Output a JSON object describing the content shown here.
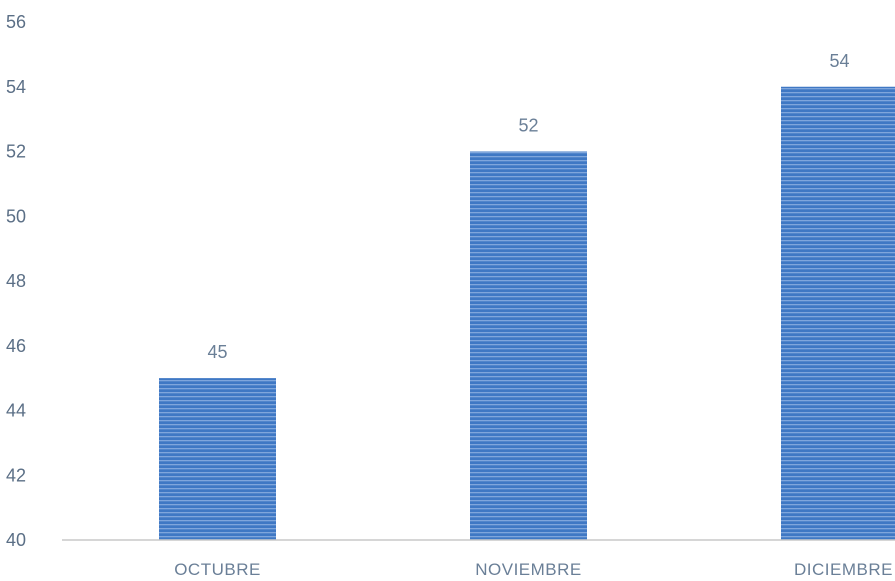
{
  "chart_data": {
    "type": "bar",
    "categories": [
      "OCTUBRE",
      "NOVIEMBRE",
      "DICIEMBRE"
    ],
    "values": [
      45,
      52,
      54
    ],
    "data_labels": [
      "45",
      "52",
      "54"
    ],
    "title": "",
    "xlabel": "",
    "ylabel": "",
    "ylim": [
      40,
      56
    ],
    "yticks": [
      "40",
      "42",
      "44",
      "46",
      "48",
      "50",
      "52",
      "54",
      "56"
    ],
    "grid": false,
    "legend": "none",
    "colors": {
      "bar": "#3f78c4",
      "bar_stripe": "#7fa6dc",
      "axis": "#c9c9c9"
    }
  }
}
